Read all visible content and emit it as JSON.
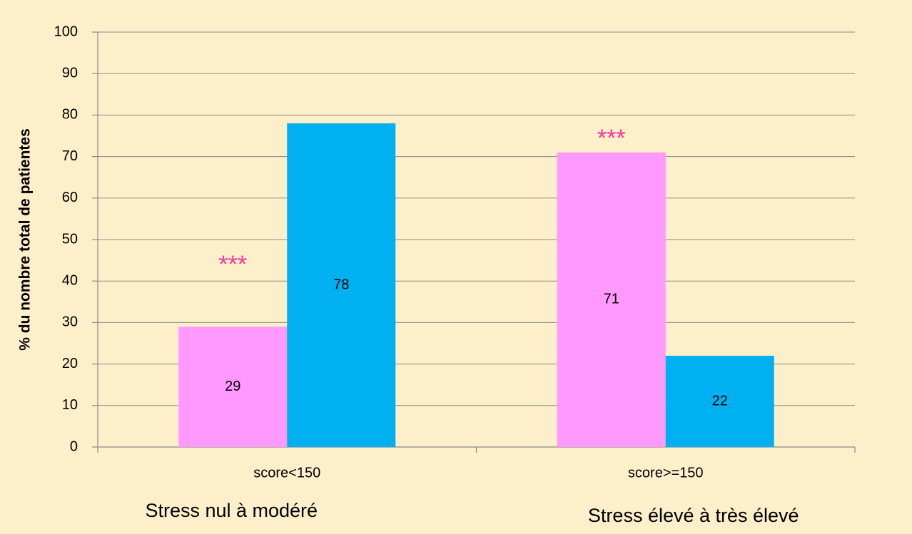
{
  "chart_data": {
    "type": "bar",
    "y_label": "% du nombre total de patientes",
    "categories": [
      "score<150",
      "score>=150"
    ],
    "category_descriptions": [
      "Stress nul à modéré",
      "Stress élevé à très élevé"
    ],
    "annotations": [
      "***",
      "***"
    ],
    "series": [
      {
        "color": "#ff99ff",
        "values": [
          29,
          71
        ]
      },
      {
        "color": "#00b0f0",
        "values": [
          78,
          22
        ]
      }
    ],
    "ylim": [
      0,
      100
    ],
    "yticks": [
      0,
      10,
      20,
      30,
      40,
      50,
      60,
      70,
      80,
      90,
      100
    ],
    "grid": true
  }
}
